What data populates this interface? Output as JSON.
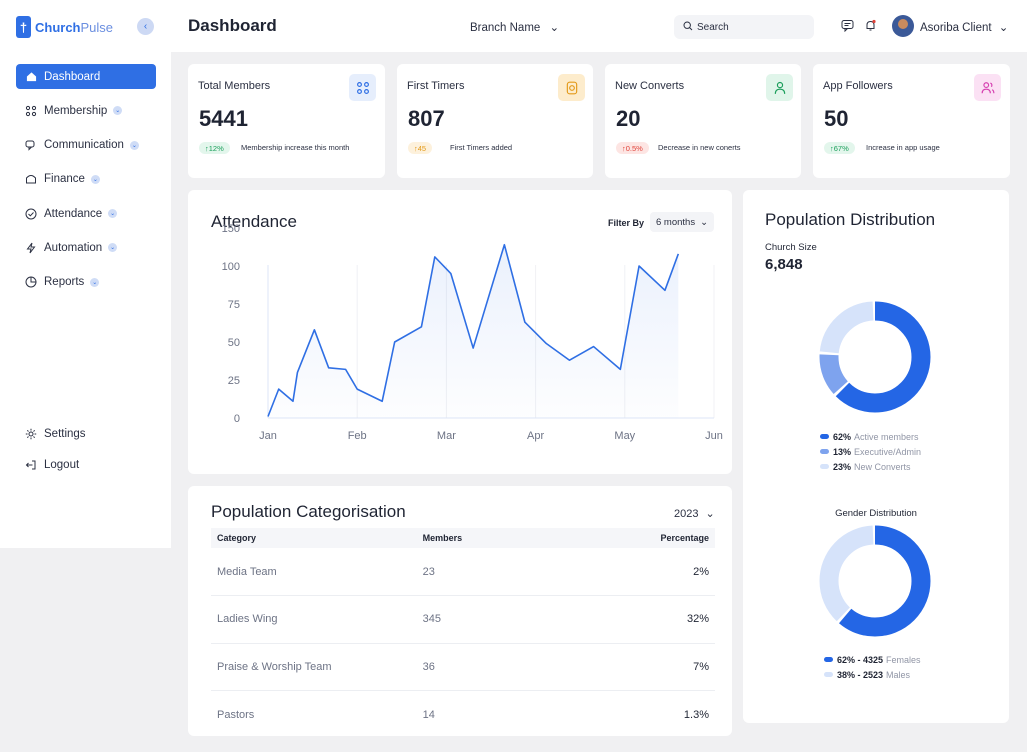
{
  "app": {
    "logo_main": "Church",
    "logo_thin": "Pulse",
    "logo_glyph": "†",
    "collapse_glyph": "‹"
  },
  "sidebar": {
    "items": [
      {
        "label": "Dashboard",
        "icon": "home-icon",
        "active": true,
        "submenu": false
      },
      {
        "label": "Membership",
        "icon": "people-icon",
        "active": false,
        "submenu": true
      },
      {
        "label": "Communication",
        "icon": "chat-icon",
        "active": false,
        "submenu": true
      },
      {
        "label": "Finance",
        "icon": "wallet-icon",
        "active": false,
        "submenu": true
      },
      {
        "label": "Attendance",
        "icon": "check-circle-icon",
        "active": false,
        "submenu": true
      },
      {
        "label": "Automation",
        "icon": "bolt-icon",
        "active": false,
        "submenu": true
      },
      {
        "label": "Reports",
        "icon": "pie-chart-icon",
        "active": false,
        "submenu": true
      }
    ],
    "settings_label": "Settings",
    "logout_label": "Logout"
  },
  "header": {
    "title": "Dashboard",
    "branch": "Branch Name",
    "search_placeholder": "Search",
    "user_name": "Asoriba Client"
  },
  "stats": [
    {
      "title": "Total Members",
      "value": "5441",
      "badge": "↑12%",
      "note": "Membership increase this month",
      "icon": "people-icon",
      "badge_color": "#1a9e5a",
      "badge_bg": "#e3f6ec",
      "icon_color": "#2f6fe4",
      "icon_bg": "#e6eefc"
    },
    {
      "title": "First Timers",
      "value": "807",
      "badge": "↑45",
      "note": "First Timers added",
      "icon": "badge-icon",
      "badge_color": "#e39a1a",
      "badge_bg": "#fdf1dc",
      "icon_color": "#e39a1a",
      "icon_bg": "#fdeccc"
    },
    {
      "title": "New Converts",
      "value": "20",
      "badge": "↑0.5%",
      "note": "Decrease in new conerts",
      "icon": "person-icon",
      "badge_color": "#e0433a",
      "badge_bg": "#fde5e3",
      "icon_color": "#1a9e5a",
      "icon_bg": "#e0f5ea"
    },
    {
      "title": "App Followers",
      "value": "50",
      "badge": "↑67%",
      "note": "Increase in app usage",
      "icon": "users-icon",
      "badge_color": "#1a9e5a",
      "badge_bg": "#e3f6ec",
      "icon_color": "#d63fb0",
      "icon_bg": "#fbe1f4"
    }
  ],
  "attendance": {
    "title": "Attendance",
    "filter_label": "Filter By",
    "filter_value": "6 months"
  },
  "chart_data": {
    "type": "line",
    "title": "Attendance",
    "xlabel": "",
    "ylabel": "",
    "x_ticks": [
      "Jan",
      "Feb",
      "Mar",
      "Apr",
      "May",
      "Jun"
    ],
    "y_ticks": [
      0,
      25,
      50,
      75,
      100,
      150
    ],
    "ylim": [
      0,
      150
    ],
    "color": "#2f6fe4",
    "x": [
      0,
      0.12,
      0.28,
      0.33,
      0.52,
      0.68,
      0.87,
      1.0,
      1.28,
      1.42,
      1.72,
      1.87,
      2.05,
      2.3,
      2.65,
      2.88,
      3.12,
      3.38,
      3.65,
      3.95,
      4.16,
      4.45,
      4.6,
      4.75,
      5.0
    ],
    "values": [
      1,
      19,
      11,
      30,
      58,
      33,
      32,
      19,
      11,
      50,
      60,
      112,
      95,
      46,
      128,
      63,
      49,
      38,
      47,
      32,
      100,
      84,
      116,
      116,
      116
    ],
    "series_end": 23
  },
  "categorisation": {
    "title": "Population Categorisation",
    "year": "2023",
    "headers": [
      "Category",
      "Members",
      "Percentage"
    ],
    "rows": [
      [
        "Media Team",
        "23",
        "2%"
      ],
      [
        "Ladies Wing",
        "345",
        "32%"
      ],
      [
        "Praise & Worship Team",
        "36",
        "7%"
      ],
      [
        "Pastors",
        "14",
        "1.3%"
      ]
    ]
  },
  "distribution": {
    "title": "Population Distribution",
    "subtitle": "Church Size",
    "total": "6,848",
    "segments": [
      {
        "pct": "62%",
        "label": "Active members",
        "value": 62,
        "color": "#2466e5"
      },
      {
        "pct": "13%",
        "label": "Executive/Admin",
        "value": 13,
        "color": "#7ea3ee"
      },
      {
        "pct": "23%",
        "label": "New Converts",
        "value": 23,
        "color": "#d6e3fa"
      }
    ],
    "gender_title": "Gender Distribution",
    "gender": [
      {
        "pct": "62% - 4325",
        "label": "Females",
        "value": 62,
        "color": "#2466e5"
      },
      {
        "pct": "38% - 2523",
        "label": "Males",
        "value": 38,
        "color": "#d6e3fa"
      }
    ]
  }
}
